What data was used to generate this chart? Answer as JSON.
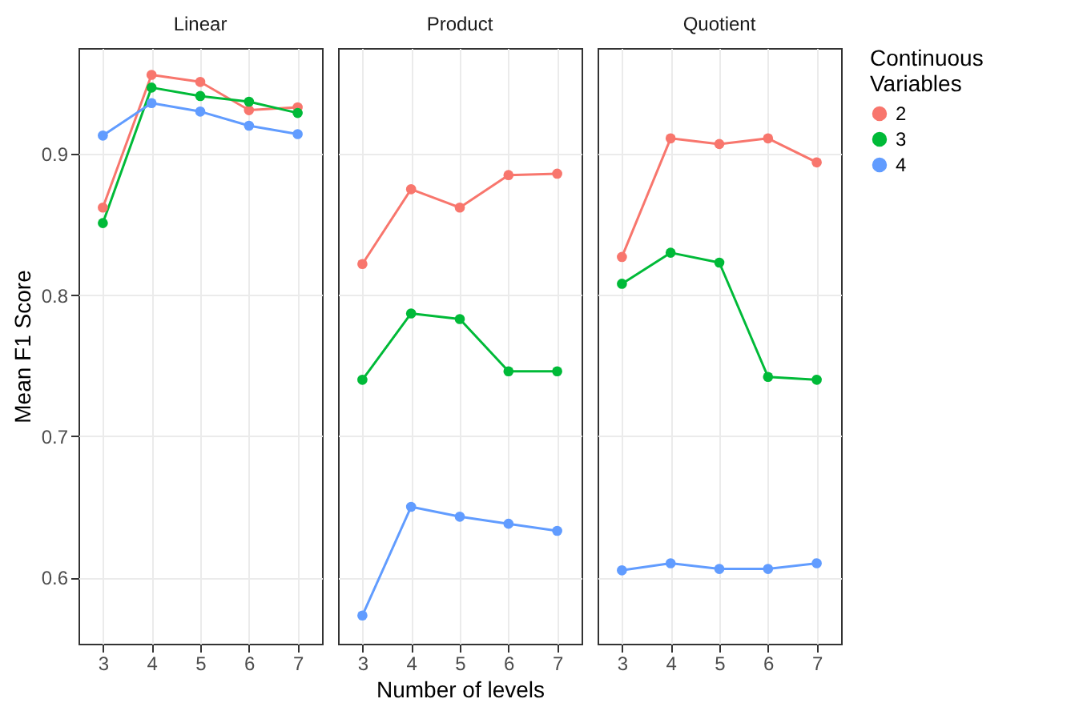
{
  "chart_data": [
    {
      "type": "line",
      "title": "Linear",
      "ylabel": "Mean F1 Score",
      "categories": [
        "3",
        "4",
        "5",
        "6",
        "7"
      ],
      "ylim": [
        0.553,
        0.975
      ],
      "yticks": [
        0.6,
        0.7,
        0.8,
        0.9
      ],
      "grid": true,
      "marker": "circle",
      "series": [
        {
          "color": "#f8766d",
          "values": [
            0.862,
            0.956,
            0.951,
            0.931,
            0.933
          ]
        },
        {
          "color": "#00ba38",
          "values": [
            0.851,
            0.947,
            0.941,
            0.937,
            0.929
          ]
        },
        {
          "color": "#619cff",
          "values": [
            0.913,
            0.936,
            0.93,
            0.92,
            0.914
          ]
        }
      ]
    },
    {
      "type": "line",
      "title": "Product",
      "xlabel": "Number of levels",
      "categories": [
        "3",
        "4",
        "5",
        "6",
        "7"
      ],
      "ylim": [
        0.553,
        0.975
      ],
      "yticks": [
        0.6,
        0.7,
        0.8,
        0.9
      ],
      "grid": true,
      "marker": "circle",
      "tick_labels": "x",
      "series": [
        {
          "color": "#f8766d",
          "values": [
            0.822,
            0.875,
            0.862,
            0.885,
            0.886
          ]
        },
        {
          "color": "#00ba38",
          "values": [
            0.74,
            0.787,
            0.783,
            0.746,
            0.746
          ]
        },
        {
          "color": "#619cff",
          "values": [
            0.573,
            0.65,
            0.643,
            0.638,
            0.633
          ]
        }
      ]
    },
    {
      "type": "line",
      "title": "Quotient",
      "legend_title": "Continuous Variables",
      "legend": "right",
      "categories": [
        "3",
        "4",
        "5",
        "6",
        "7"
      ],
      "ylim": [
        0.553,
        0.975
      ],
      "yticks": [
        0.6,
        0.7,
        0.8,
        0.9
      ],
      "grid": true,
      "marker": "circle",
      "tick_labels": "x",
      "series": [
        {
          "name": "2",
          "color": "#f8766d",
          "values": [
            0.827,
            0.911,
            0.907,
            0.911,
            0.894
          ]
        },
        {
          "name": "3",
          "color": "#00ba38",
          "values": [
            0.808,
            0.83,
            0.823,
            0.742,
            0.74
          ]
        },
        {
          "name": "4",
          "color": "#619cff",
          "values": [
            0.605,
            0.61,
            0.606,
            0.606,
            0.61
          ]
        }
      ]
    }
  ]
}
